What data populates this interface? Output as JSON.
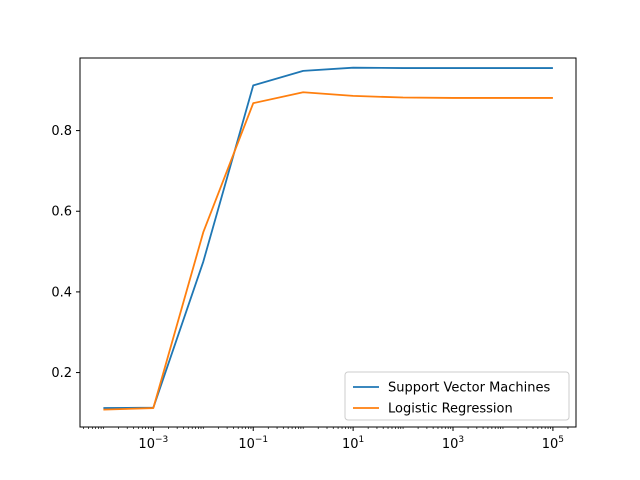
{
  "chart_data": {
    "type": "line",
    "title": "",
    "xlabel": "",
    "ylabel": "",
    "xscale": "log",
    "x": [
      0.0001,
      0.001,
      0.01,
      0.1,
      1,
      10,
      100,
      1000,
      10000,
      100000
    ],
    "xlim": [
      3.4e-05,
      290000
    ],
    "ylim": [
      0.065,
      0.98
    ],
    "grid": false,
    "legend_position": "lower-right",
    "x_ticks": [
      {
        "value": 0.001,
        "base": "10",
        "exp": "−3"
      },
      {
        "value": 0.1,
        "base": "10",
        "exp": "−1"
      },
      {
        "value": 10,
        "base": "10",
        "exp": "1"
      },
      {
        "value": 1000,
        "base": "10",
        "exp": "3"
      },
      {
        "value": 100000,
        "base": "10",
        "exp": "5"
      }
    ],
    "y_ticks": [
      {
        "value": 0.2,
        "label": "0.2"
      },
      {
        "value": 0.4,
        "label": "0.4"
      },
      {
        "value": 0.6,
        "label": "0.6"
      },
      {
        "value": 0.8,
        "label": "0.8"
      }
    ],
    "series": [
      {
        "name": "Support Vector Machines",
        "color": "#1f77b4",
        "values": [
          0.112,
          0.113,
          0.475,
          0.912,
          0.948,
          0.956,
          0.955,
          0.955,
          0.955,
          0.955
        ]
      },
      {
        "name": "Logistic Regression",
        "color": "#ff7f0e",
        "values": [
          0.108,
          0.112,
          0.548,
          0.868,
          0.895,
          0.886,
          0.882,
          0.881,
          0.881,
          0.881
        ]
      }
    ]
  }
}
